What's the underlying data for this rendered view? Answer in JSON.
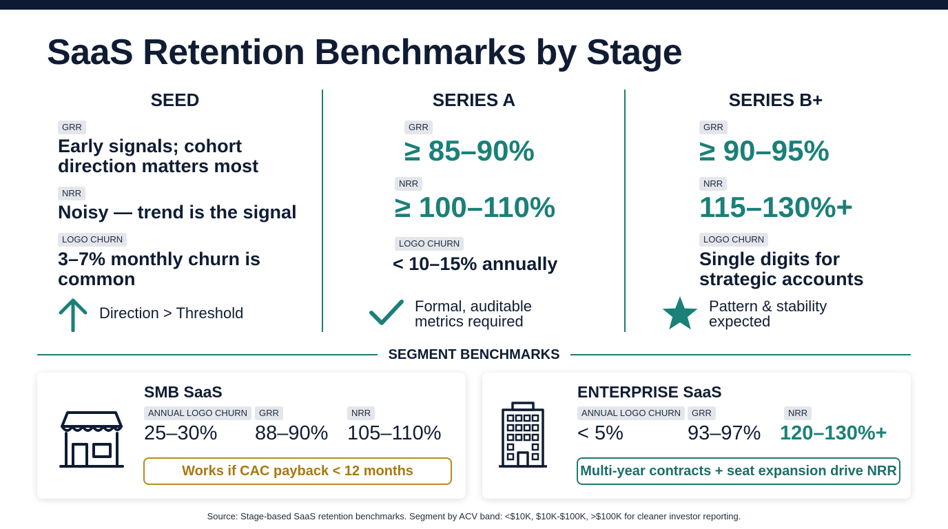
{
  "title": "SaaS Retention Benchmarks by Stage",
  "stages": [
    {
      "name": "SEED",
      "grr_label": "GRR",
      "grr_line1": "Early signals; cohort",
      "grr_line2": "direction matters most",
      "nrr_label": "NRR",
      "nrr_value": "Noisy — trend is the signal",
      "logo_label": "LOGO CHURN",
      "logo_line1": "3–7% monthly churn is",
      "logo_line2": "common",
      "note": "Direction > Threshold",
      "icon": "arrow-up-icon"
    },
    {
      "name": "SERIES A",
      "grr_label": "GRR",
      "grr_value": "≥ 85–90%",
      "nrr_label": "NRR",
      "nrr_value": "≥ 100–110%",
      "logo_label": "LOGO CHURN",
      "logo_value": "< 10–15% annually",
      "note_line1": "Formal, auditable",
      "note_line2": "metrics required",
      "icon": "checkmark-icon"
    },
    {
      "name": "SERIES B+",
      "grr_label": "GRR",
      "grr_value": "≥ 90–95%",
      "nrr_label": "NRR",
      "nrr_value": "115–130%+",
      "logo_label": "LOGO CHURN",
      "logo_line1": "Single digits for",
      "logo_line2": "strategic accounts",
      "note_line1": "Pattern & stability",
      "note_line2": "expected",
      "icon": "star-icon"
    }
  ],
  "segment_heading": "SEGMENT BENCHMARKS",
  "segments": [
    {
      "title": "SMB SaaS",
      "icon": "storefront-icon",
      "logo_label": "ANNUAL LOGO CHURN",
      "logo_value": "25–30%",
      "grr_label": "GRR",
      "grr_value": "88–90%",
      "nrr_label": "NRR",
      "nrr_value": "105–110%",
      "callout": "Works if CAC payback < 12 months"
    },
    {
      "title": "ENTERPRISE SaaS",
      "icon": "office-building-icon",
      "logo_label": "ANNUAL LOGO CHURN",
      "logo_value": "< 5%",
      "grr_label": "GRR",
      "grr_value": "93–97%",
      "nrr_label": "NRR",
      "nrr_value": "120–130%+",
      "callout": "Multi-year contracts + seat expansion drive NRR"
    }
  ],
  "source": "Source: Stage-based SaaS retention benchmarks. Segment by ACV band: <$10K, $10K-$100K, >$100K for cleaner investor reporting.",
  "colors": {
    "navy": "#0f1c33",
    "teal": "#1a8078",
    "gold": "#b8891a",
    "pill": "#e3e6eb"
  }
}
